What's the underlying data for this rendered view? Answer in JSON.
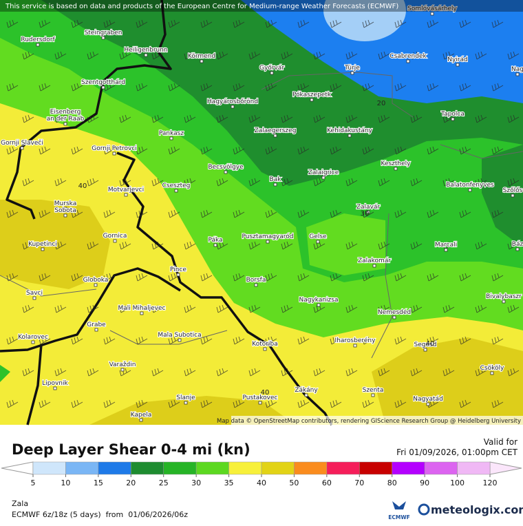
{
  "header": {
    "notice": "This service is based on data and products of the European Centre for Medium-range Weather Forecasts (ECMWF)"
  },
  "map": {
    "places": [
      "Somlóvásárhely",
      "Steingraben",
      "Rudersdorf",
      "Heiligenbrunn",
      "Körmend",
      "Győrvár",
      "Türje",
      "Csabrendek",
      "Nyirád",
      "Nag",
      "Szentgotthárd",
      "Pókaszepetk",
      "Hagyárosbőrönd",
      "Tapolca",
      "Eisenberg",
      "an der Raab",
      "Zalaegerszeg",
      "Kehidakustány",
      "Pankasz",
      "Gornji Slaveči",
      "Gornji Petrovci",
      "Keszthely",
      "Becsvölgye",
      "Zalaigrice",
      "Bak",
      "Cseszteg",
      "Balatonfenyves",
      "Szőlős",
      "Motvarjevci",
      "Murska",
      "Sobota",
      "Zalavár",
      "Páka",
      "Pusztamagyaród",
      "Gelse",
      "Kupetinci",
      "Gornica",
      "Marcali",
      "Báz",
      "Zalakomár",
      "Pince",
      "Globoka",
      "Borsfa",
      "Nagykanizsa",
      "Savci",
      "Bivalybaszr",
      "Mali Mihaljevec",
      "Nemesdéd",
      "Grabe",
      "Mala Subotica",
      "Kolarovec",
      "Iharosberény",
      "Segesd",
      "Kotoriba",
      "Csököly",
      "Varaždin",
      "Lipovnik",
      "Zákány",
      "Szenta",
      "Slanje",
      "Pustakovec",
      "Nagyatád",
      "Kapela"
    ],
    "contour_labels": [
      "20",
      "40",
      "30",
      "40",
      "40"
    ],
    "attribution": "Map data © OpenStreetMap contributors, rendering GIScience Research Group @ Heidelberg University"
  },
  "footer": {
    "title": "Deep Layer Shear 0-4 mi (kn)",
    "valid_label": "Valid for",
    "valid_time": "Fri 01/09/2026, 01:00pm CET",
    "region": "Zala",
    "model_run": "ECMWF 6z/18z (5 days)  from  01/06/2026/06z",
    "provider_logo": "ECMWF",
    "brand": "meteologix.com"
  },
  "legend": {
    "ticks": [
      5,
      10,
      15,
      20,
      25,
      30,
      35,
      40,
      50,
      60,
      70,
      80,
      90,
      100,
      120
    ],
    "colors": [
      "#cfe6fb",
      "#7ab6f5",
      "#1e7ae8",
      "#1e8c30",
      "#26b426",
      "#5cd820",
      "#f7f03a",
      "#e2d316",
      "#fa8c1e",
      "#f51e5a",
      "#c80000",
      "#b400ff",
      "#dc64f0",
      "#f0b8f5"
    ]
  }
}
